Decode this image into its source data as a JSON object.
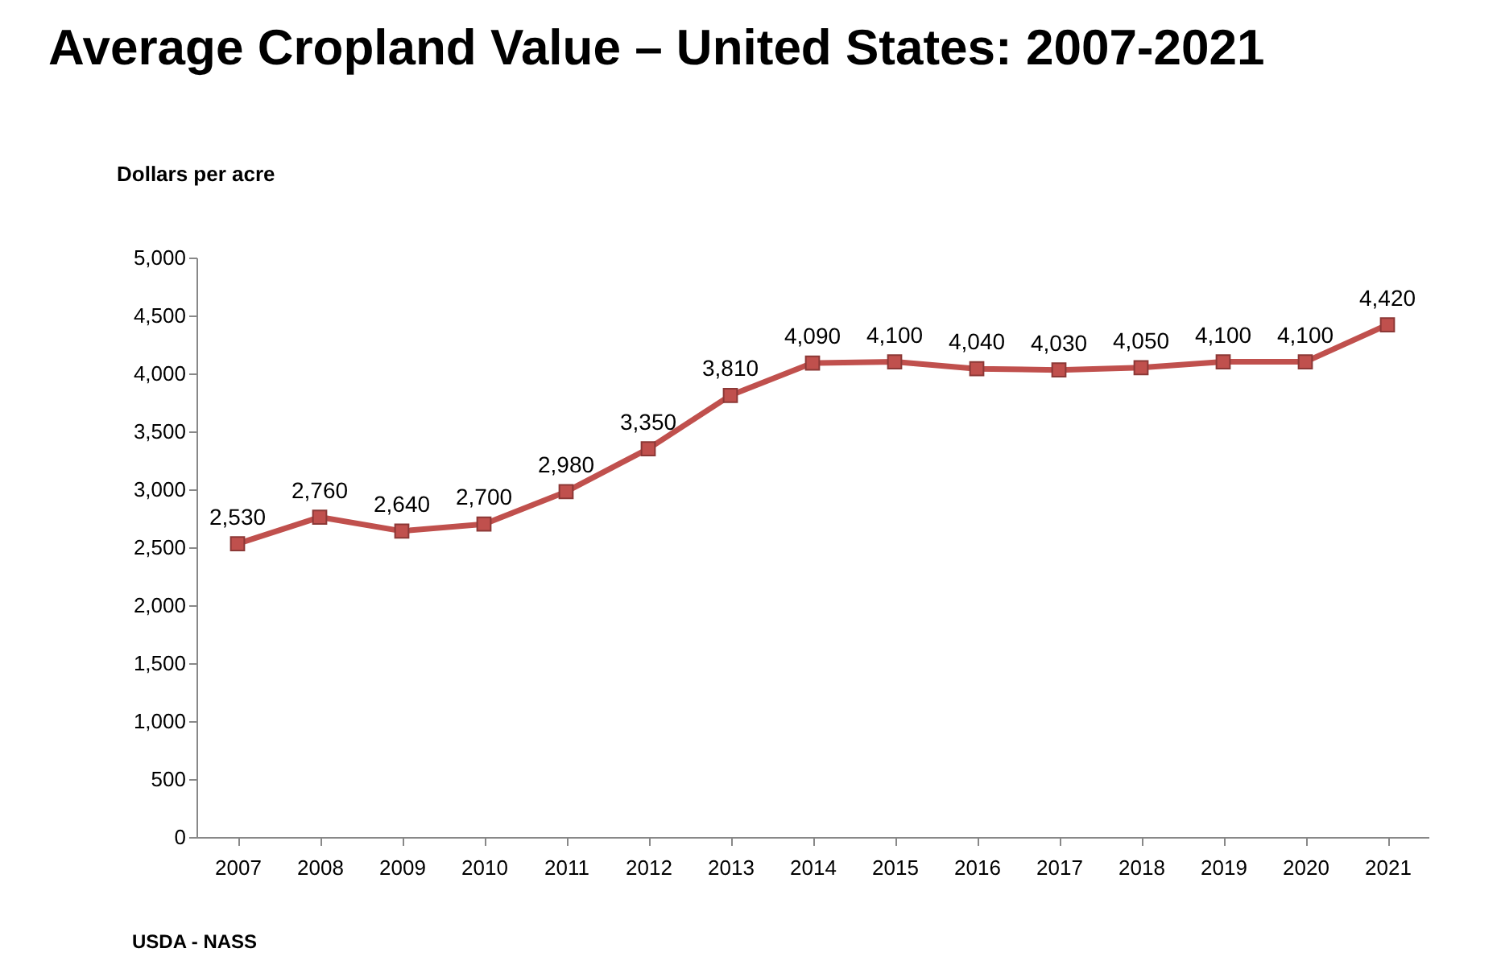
{
  "chart_data": {
    "type": "line",
    "title": "Average Cropland Value – United States: 2007-2021",
    "ylabel": "Dollars per acre",
    "categories": [
      "2007",
      "2008",
      "2009",
      "2010",
      "2011",
      "2012",
      "2013",
      "2014",
      "2015",
      "2016",
      "2017",
      "2018",
      "2019",
      "2020",
      "2021"
    ],
    "series": [
      {
        "color": "#c0504d",
        "values": [
          2530,
          2760,
          2640,
          2700,
          2980,
          3350,
          3810,
          4090,
          4100,
          4040,
          4030,
          4050,
          4100,
          4100,
          4420
        ]
      }
    ],
    "ylim": [
      0,
      5000
    ],
    "yticks": [
      0,
      500,
      {
        "value": 1000,
        "label": "1,000"
      },
      {
        "value": 1500,
        "label": "1,500"
      },
      {
        "value": 2000,
        "label": "2,000"
      },
      {
        "value": 2500,
        "label": "2,500"
      },
      {
        "value": 3000,
        "label": "3,000"
      },
      {
        "value": 3500,
        "label": "3,500"
      },
      {
        "value": 4000,
        "label": "4,000"
      },
      {
        "value": 4500,
        "label": "4,500"
      },
      {
        "value": 5000,
        "label": "5,000"
      }
    ],
    "value_labels": [
      "2,530",
      "2,760",
      "2,640",
      "2,700",
      "2,980",
      "3,350",
      "3,810",
      "4,090",
      "4,100",
      "4,040",
      "4,030",
      "4,050",
      "4,100",
      "4,100",
      "4,420"
    ],
    "marker": "square",
    "line_style": "solid",
    "grid": false,
    "legend": false,
    "annotations": [
      "USDA - NASS"
    ]
  }
}
